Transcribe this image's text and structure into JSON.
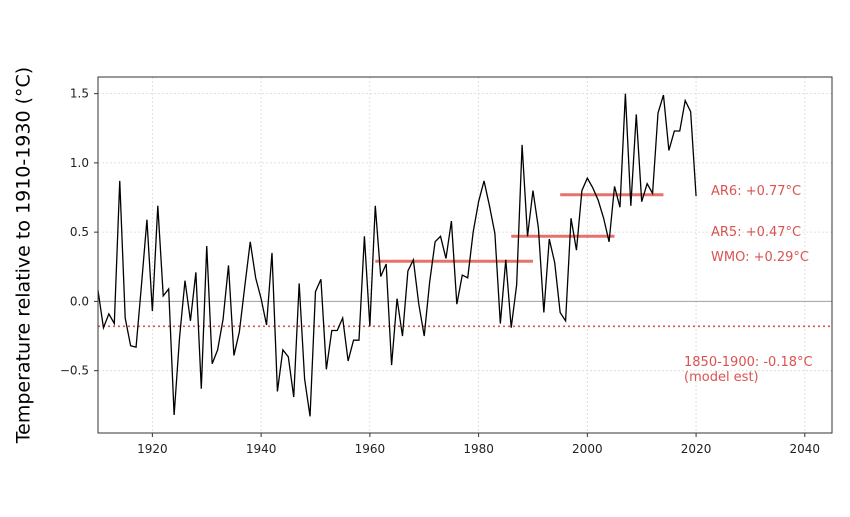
{
  "chart_data": {
    "type": "line",
    "ylabel": "Temperature relative to 1910-1930 (°C)",
    "xlim": [
      1910,
      2045
    ],
    "ylim": [
      -0.95,
      1.62
    ],
    "xticks": [
      1920,
      1940,
      1960,
      1980,
      2000,
      2020,
      2040
    ],
    "yticks": [
      -0.5,
      0.0,
      0.5,
      1.0,
      1.5
    ],
    "ytick_labels": [
      "−0.5",
      "0.0",
      "0.5",
      "1.0",
      "1.5"
    ],
    "grid": true,
    "colors": {
      "line": "#000000",
      "accent": "#e8726b",
      "annotation": "#d9534f",
      "zero": "#a0a0a0"
    },
    "series": [
      {
        "x": [
          1910,
          1911,
          1912,
          1913,
          1914,
          1915,
          1916,
          1917,
          1918,
          1919,
          1920,
          1921,
          1922,
          1923,
          1924,
          1925,
          1926,
          1927,
          1928,
          1929,
          1930,
          1931,
          1932,
          1933,
          1934,
          1935,
          1936,
          1937,
          1938,
          1939,
          1940,
          1941,
          1942,
          1943,
          1944,
          1945,
          1946,
          1947,
          1948,
          1949,
          1950,
          1951,
          1952,
          1953,
          1954,
          1955,
          1956,
          1957,
          1958,
          1959,
          1960,
          1961,
          1962,
          1963,
          1964,
          1965,
          1966,
          1967,
          1968,
          1969,
          1970,
          1971,
          1972,
          1973,
          1974,
          1975,
          1976,
          1977,
          1978,
          1979,
          1980,
          1981,
          1982,
          1983,
          1984,
          1985,
          1986,
          1987,
          1988,
          1989,
          1990,
          1991,
          1992,
          1993,
          1994,
          1995,
          1996,
          1997,
          1998,
          1999,
          2000,
          2001,
          2002,
          2003,
          2004,
          2005,
          2006,
          2007,
          2008,
          2009,
          2010,
          2011,
          2012,
          2013,
          2014,
          2015,
          2016,
          2017,
          2018,
          2019,
          2020
        ],
        "y": [
          0.08,
          -0.19,
          -0.09,
          -0.16,
          0.87,
          -0.12,
          -0.32,
          -0.33,
          0.12,
          0.59,
          -0.07,
          0.69,
          0.04,
          0.09,
          -0.82,
          -0.26,
          0.15,
          -0.14,
          0.21,
          -0.63,
          0.4,
          -0.45,
          -0.35,
          -0.13,
          0.26,
          -0.39,
          -0.22,
          0.11,
          0.43,
          0.17,
          0.02,
          -0.17,
          0.35,
          -0.65,
          -0.35,
          -0.4,
          -0.69,
          0.13,
          -0.56,
          -0.83,
          0.07,
          0.16,
          -0.49,
          -0.21,
          -0.21,
          -0.12,
          -0.43,
          -0.28,
          -0.28,
          0.47,
          -0.18,
          0.69,
          0.18,
          0.27,
          -0.46,
          0.02,
          -0.25,
          0.22,
          0.3,
          -0.02,
          -0.25,
          0.14,
          0.43,
          0.47,
          0.31,
          0.58,
          -0.02,
          0.19,
          0.17,
          0.5,
          0.72,
          0.87,
          0.69,
          0.49,
          -0.16,
          0.3,
          -0.19,
          0.12,
          1.13,
          0.47,
          0.8,
          0.53,
          -0.08,
          0.45,
          0.28,
          -0.08,
          -0.14,
          0.6,
          0.37,
          0.8,
          0.89,
          0.82,
          0.73,
          0.6,
          0.43,
          0.83,
          0.68,
          1.5,
          0.69,
          1.35,
          0.72,
          0.85,
          0.78,
          1.36,
          1.49,
          1.09,
          1.23,
          1.23,
          1.45,
          1.37,
          0.76
        ]
      }
    ],
    "reference_lines": [
      {
        "label": "1850-1900: -0.18°C",
        "label2": "(model est)",
        "y": -0.18,
        "style": "dotted"
      }
    ],
    "period_segments": [
      {
        "label": "WMO: +0.29°C",
        "x": [
          1961,
          1990
        ],
        "y": 0.29
      },
      {
        "label": "AR5: +0.47°C",
        "x": [
          1986,
          2005
        ],
        "y": 0.47
      },
      {
        "label": "AR6: +0.77°C",
        "x": [
          1995,
          2014
        ],
        "y": 0.77
      }
    ]
  }
}
